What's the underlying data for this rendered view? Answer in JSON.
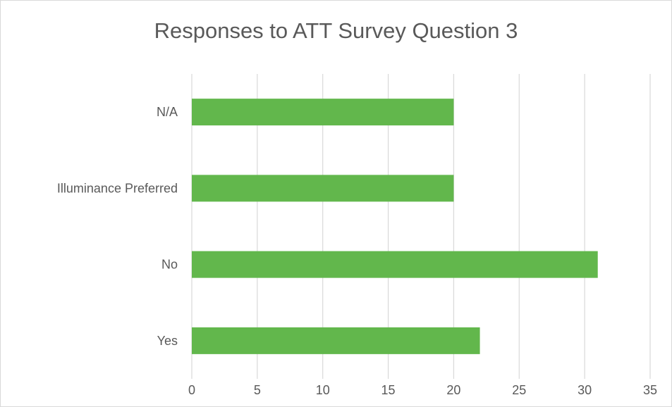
{
  "chart_data": {
    "type": "bar",
    "orientation": "horizontal",
    "title": "Responses to ATT Survey Question 3",
    "categories": [
      "Yes",
      "No",
      "Illuminance Preferred",
      "N/A"
    ],
    "values": [
      22,
      31,
      20,
      20
    ],
    "xlim": [
      0,
      35
    ],
    "xticks": [
      0,
      5,
      10,
      15,
      20,
      25,
      30,
      35
    ],
    "xlabel": "",
    "ylabel": "",
    "grid": "vertical",
    "legend": "none",
    "bar_color": "#62b74c",
    "grid_color": "#d9d9d9",
    "text_color": "#595959"
  }
}
